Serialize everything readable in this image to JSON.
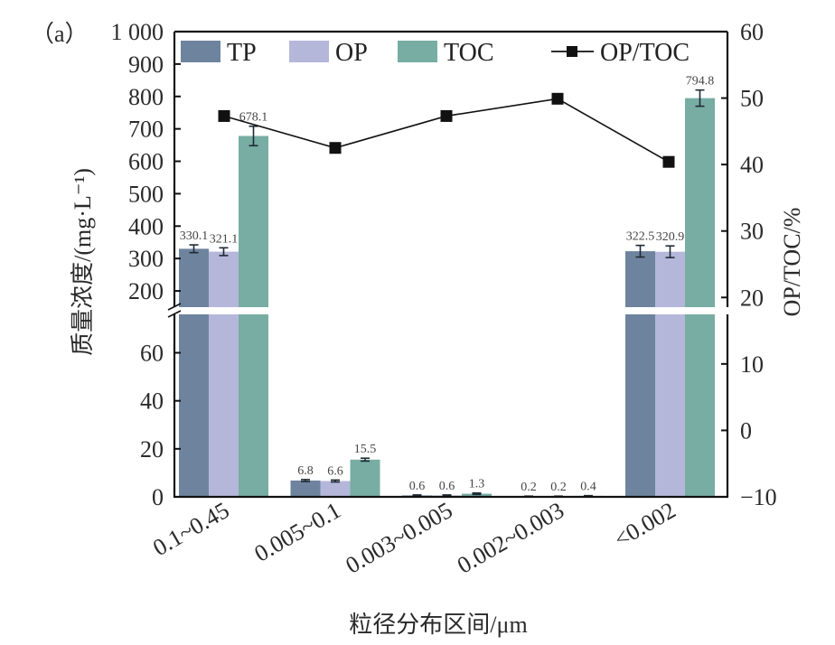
{
  "chart_data": {
    "type": "bar",
    "panel_label": "（a）",
    "title": "",
    "xlabel": "粒径分布区间/μm",
    "ylabel": "质量浓度/(mg·L⁻¹)",
    "y2label": "OP/TOC/%",
    "categories": [
      "0.1~0.45",
      "0.005~0.1",
      "0.003~0.005",
      "0.002~0.003",
      "<0.002"
    ],
    "series": [
      {
        "name": "TP",
        "kind": "bar",
        "color": "#6e849e",
        "values": [
          330.1,
          6.8,
          0.6,
          0.2,
          322.5
        ],
        "errors": [
          12,
          0.4,
          0.2,
          0.1,
          18
        ],
        "labels": [
          "330.1",
          "6.8",
          "0.6",
          "0.2",
          "322.5"
        ]
      },
      {
        "name": "OP",
        "kind": "bar",
        "color": "#b5b7da",
        "values": [
          321.1,
          6.6,
          0.6,
          0.2,
          320.9
        ],
        "errors": [
          12,
          0.4,
          0.2,
          0.1,
          18
        ],
        "labels": [
          "321.1",
          "6.6",
          "0.6",
          "0.2",
          "320.9"
        ]
      },
      {
        "name": "TOC",
        "kind": "bar",
        "color": "#77ada3",
        "values": [
          678.1,
          15.5,
          1.3,
          0.4,
          794.8
        ],
        "errors": [
          30,
          0.6,
          0.3,
          0.1,
          25
        ],
        "labels": [
          "678.1",
          "15.5",
          "1.3",
          "0.4",
          "794.8"
        ]
      },
      {
        "name": "OP/TOC",
        "kind": "line",
        "axis": "right",
        "color": "#111111",
        "values": [
          47.3,
          42.5,
          47.3,
          49.9,
          40.4
        ]
      }
    ],
    "y_axis_left": {
      "broken": true,
      "upper_range": [
        150,
        1000
      ],
      "upper_ticks": [
        200,
        300,
        400,
        500,
        600,
        700,
        800,
        900,
        1000
      ],
      "upper_tick_labels": [
        "200",
        "300",
        "400",
        "500",
        "600",
        "700",
        "800",
        "900",
        "1 000"
      ],
      "lower_range": [
        0,
        76
      ],
      "lower_ticks": [
        0,
        20,
        40,
        60
      ],
      "lower_tick_labels": [
        "0",
        "20",
        "40",
        "60"
      ]
    },
    "y_axis_right": {
      "range": [
        -10,
        60
      ],
      "ticks": [
        -10,
        0,
        10,
        20,
        30,
        40,
        50,
        60
      ],
      "tick_labels": [
        "−10",
        "0",
        "10",
        "20",
        "30",
        "40",
        "50",
        "60"
      ]
    },
    "legend": {
      "placement": "top",
      "entries": [
        "TP",
        "OP",
        "TOC",
        "OP/TOC"
      ]
    },
    "grid": false
  }
}
